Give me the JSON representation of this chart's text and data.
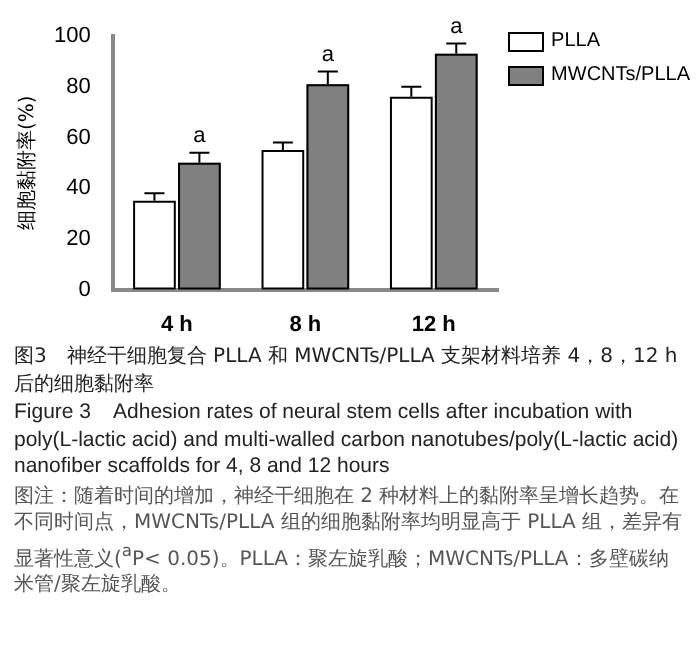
{
  "chart_data": {
    "type": "bar",
    "ylabel": "细胞黏附率(%)",
    "categories": [
      "4 h",
      "8 h",
      "12 h"
    ],
    "series": [
      {
        "name": "PLLA",
        "color": "#ffffff",
        "values": [
          35,
          55,
          76
        ],
        "errors": [
          [
            35,
            38
          ],
          [
            55,
            58
          ],
          [
            76,
            80
          ]
        ]
      },
      {
        "name": "MWCNTs/PLLA",
        "color": "#808080",
        "values": [
          50,
          81,
          93
        ],
        "errors": [
          [
            50,
            54
          ],
          [
            81,
            86
          ],
          [
            93,
            97
          ]
        ]
      }
    ],
    "ylim": [
      0,
      100
    ],
    "yticks": [
      0,
      20,
      40,
      60,
      80,
      100
    ],
    "grid": false,
    "legend": "top right",
    "annotations": [
      {
        "text": "a",
        "x": "4 h",
        "y": 50
      },
      {
        "text": "a",
        "x": "8 h",
        "y": 81
      },
      {
        "text": "a",
        "x": "12 h",
        "y": 93
      },
      "图3　神经干细胞复合 PLLA 和 MWCNTs/PLLA 支架材料培养 4，8，12 h 后的细胞黏附率",
      "Figure 3　Adhesion rates of neural stem cells after incubation with poly(L-lactic acid) and multi-walled carbon nanotubes/poly(L-lactic acid) nanofiber scaffolds for 4, 8 and 12 hours",
      "图注：随着时间的增加，神经干细胞在 2 种材料上的黏附率呈增长趋势。在不同时间点，MWCNTs/PLLA 组的细胞黏附率均明显高于 PLLA 组，差异有显著性意义($^{a}$P< 0.05)。PLLA：聚左旋乳酸；MWCNTs/PLLA：多壁碳纳米管/聚左旋乳酸。"
    ]
  }
}
